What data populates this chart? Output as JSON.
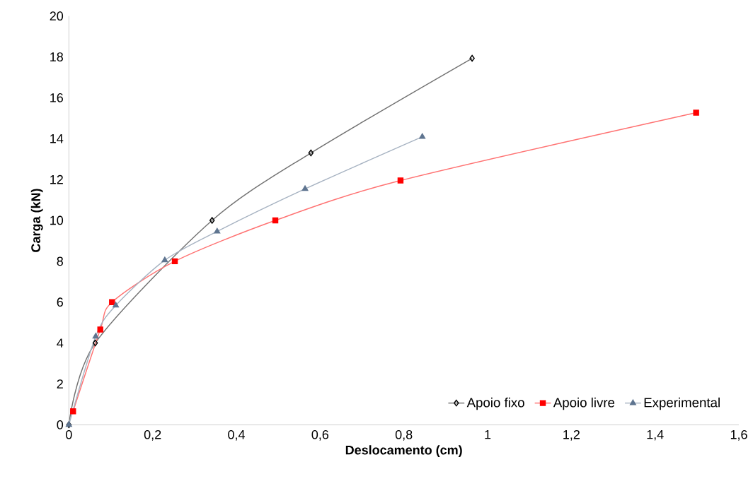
{
  "chart_data": {
    "type": "line",
    "xlabel": "Deslocamento (cm)",
    "ylabel": "Carga (kN)",
    "xlim": [
      0,
      1.6
    ],
    "ylim": [
      0,
      20
    ],
    "xticks": [
      0,
      {
        "value": 0.2,
        "label": "0,2"
      },
      {
        "value": 0.4,
        "label": "0,4"
      },
      {
        "value": 0.6,
        "label": "0,6"
      },
      {
        "value": 0.8,
        "label": "0,8"
      },
      1,
      {
        "value": 1.2,
        "label": "1,2"
      },
      {
        "value": 1.4,
        "label": "1,4"
      },
      {
        "value": 1.6,
        "label": "1,6"
      }
    ],
    "yticks": [
      0,
      2,
      4,
      6,
      8,
      10,
      12,
      14,
      16,
      18,
      20
    ],
    "grid": false,
    "legend": "bottom right",
    "series": [
      {
        "name": "Apoio fixo",
        "color": "#000000",
        "marker": "diamond",
        "x": [
          0,
          0.063,
          0.342,
          0.578,
          0.963
        ],
        "values": [
          0,
          4.0,
          10.0,
          13.3,
          17.93
        ]
      },
      {
        "name": "Apoio livre",
        "color": "#ff0000",
        "marker": "square",
        "x": [
          0.01,
          0.075,
          0.103,
          0.253,
          0.493,
          0.792,
          1.498
        ],
        "values": [
          0.66,
          4.66,
          6.0,
          8.0,
          10.0,
          11.95,
          15.27
        ]
      },
      {
        "name": "Experimental",
        "color": "#5f7590",
        "marker": "triangle",
        "x": [
          0,
          0.064,
          0.112,
          0.229,
          0.354,
          0.564,
          0.844
        ],
        "values": [
          0,
          4.32,
          5.84,
          8.05,
          9.46,
          11.54,
          14.09
        ]
      }
    ]
  }
}
